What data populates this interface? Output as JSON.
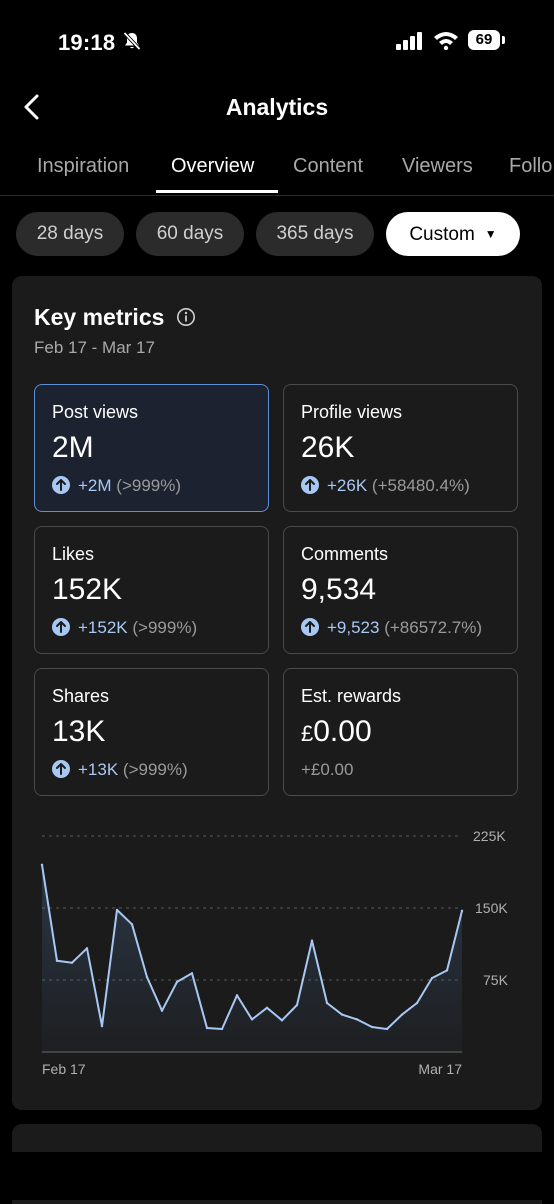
{
  "status": {
    "time": "19:18",
    "battery": "69",
    "icons": [
      "bell-slash-icon",
      "signal-icon",
      "wifi-icon",
      "battery-icon"
    ]
  },
  "header": {
    "title": "Analytics",
    "back_icon": "chevron-left-icon"
  },
  "tabs": [
    "Inspiration",
    "Overview",
    "Content",
    "Viewers",
    "Follo"
  ],
  "active_tab": "Overview",
  "ranges": [
    "28 days",
    "60 days",
    "365 days",
    "Custom"
  ],
  "active_range": "Custom",
  "key_metrics": {
    "title": "Key metrics",
    "date_range": "Feb 17 - Mar 17",
    "metrics": [
      {
        "label": "Post views",
        "value": "2M",
        "delta": "+2M",
        "pct": "(>999%)"
      },
      {
        "label": "Profile views",
        "value": "26K",
        "delta": "+26K",
        "pct": "(+58480.4%)"
      },
      {
        "label": "Likes",
        "value": "152K",
        "delta": "+152K",
        "pct": "(>999%)"
      },
      {
        "label": "Comments",
        "value": "9,534",
        "delta": "+9,523",
        "pct": "(+86572.7%)"
      },
      {
        "label": "Shares",
        "value": "13K",
        "delta": "+13K",
        "pct": "(>999%)"
      },
      {
        "label": "Est. rewards",
        "currency": "£",
        "value": "0.00",
        "change": "+£0.00"
      }
    ]
  },
  "colors": {
    "accent": "#a8c8f4",
    "selected_border": "#5c8fd6",
    "card_bg": "#1b1b1b"
  },
  "chart_data": {
    "type": "area",
    "x_start_label": "Feb 17",
    "x_end_label": "Mar 17",
    "y_tick_labels": [
      "225K",
      "150K",
      "75K"
    ],
    "ylim": [
      0,
      225000
    ],
    "grid": true,
    "values": [
      195000,
      95000,
      93000,
      108000,
      27000,
      148000,
      133000,
      78000,
      43000,
      73000,
      82000,
      25000,
      24000,
      59000,
      34000,
      46000,
      33000,
      49000,
      116000,
      51000,
      39000,
      34000,
      26000,
      24000,
      39000,
      51000,
      77000,
      85000,
      147000
    ]
  }
}
